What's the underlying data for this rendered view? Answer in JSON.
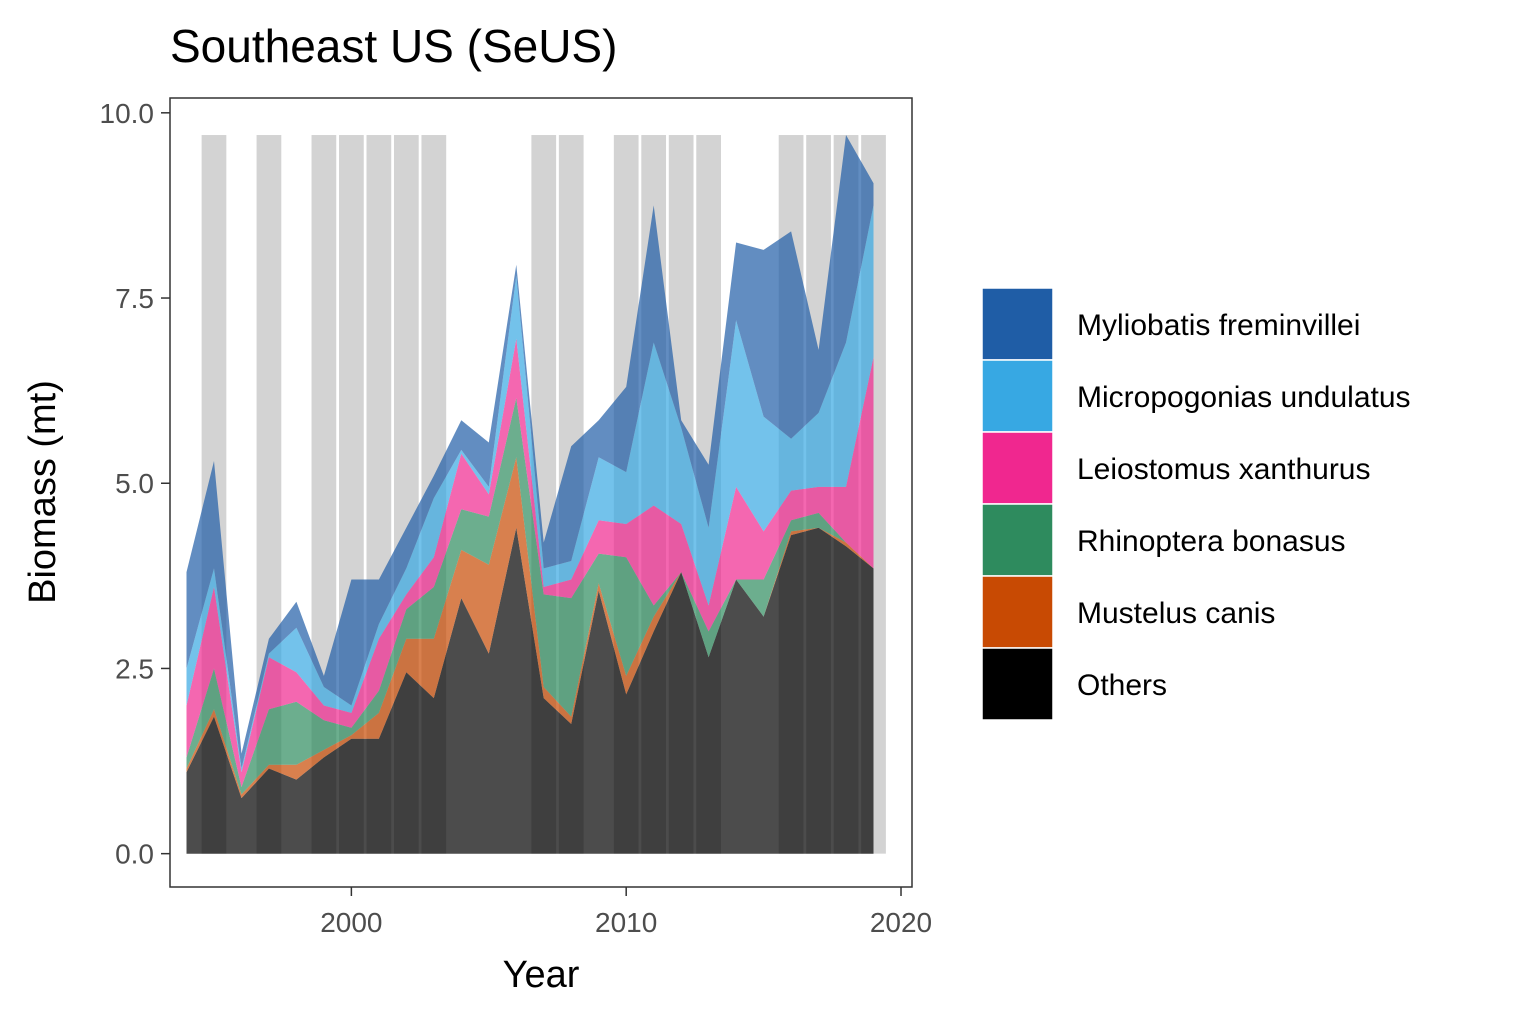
{
  "chart_data": {
    "type": "area",
    "stacked": true,
    "title": "Southeast US (SeUS)",
    "xlabel": "Year",
    "ylabel": "Biomass (mt)",
    "xlim": [
      1993.4,
      2020.4
    ],
    "ylim": [
      -0.45,
      10.2
    ],
    "x_ticks": [
      2000,
      2010,
      2020
    ],
    "y_ticks": [
      0.0,
      2.5,
      5.0,
      7.5,
      10.0
    ],
    "y_tick_labels": [
      "0.0",
      "2.5",
      "5.0",
      "7.5",
      "10.0"
    ],
    "grid": false,
    "legend_position": "right",
    "shaded_years": [
      1995,
      1997,
      1999,
      2000,
      2001,
      2002,
      2003,
      2007,
      2008,
      2010,
      2011,
      2012,
      2013,
      2016,
      2017,
      2018,
      2019
    ],
    "shade_band_top": 9.7,
    "shade_color": "#d3d3d3",
    "x": [
      1994,
      1995,
      1996,
      1997,
      1998,
      1999,
      2000,
      2001,
      2002,
      2003,
      2004,
      2005,
      2006,
      2007,
      2008,
      2009,
      2010,
      2011,
      2012,
      2013,
      2014,
      2015,
      2016,
      2017,
      2018,
      2019
    ],
    "series": [
      {
        "name": "Others",
        "color": "#000000",
        "values": [
          1.1,
          1.85,
          0.75,
          1.15,
          1.0,
          1.3,
          1.55,
          1.55,
          2.45,
          2.1,
          3.45,
          2.7,
          4.4,
          2.1,
          1.75,
          3.55,
          2.15,
          3.0,
          3.8,
          2.65,
          3.7,
          3.2,
          4.3,
          4.4,
          4.15,
          3.85
        ]
      },
      {
        "name": "Mustelus canis",
        "color": "#c84a03",
        "values": [
          0.05,
          0.1,
          0.05,
          0.05,
          0.2,
          0.1,
          0.05,
          0.35,
          0.45,
          0.8,
          0.65,
          1.2,
          0.95,
          0.15,
          0.1,
          0.1,
          0.25,
          0.2,
          0.0,
          0.0,
          0.0,
          0.0,
          0.05,
          0.0,
          0.05,
          0.0
        ]
      },
      {
        "name": "Rhinoptera bonasus",
        "color": "#2e8b5e",
        "values": [
          0.15,
          0.55,
          0.1,
          0.75,
          0.85,
          0.4,
          0.1,
          0.3,
          0.4,
          0.7,
          0.55,
          0.65,
          0.8,
          1.25,
          1.6,
          0.4,
          1.6,
          0.15,
          0.0,
          0.35,
          0.0,
          0.5,
          0.15,
          0.2,
          0.0,
          0.0
        ]
      },
      {
        "name": "Leiostomus xanthurus",
        "color": "#f0278f",
        "values": [
          0.7,
          1.1,
          0.2,
          0.7,
          0.4,
          0.2,
          0.2,
          0.7,
          0.2,
          0.4,
          0.75,
          0.3,
          0.8,
          0.1,
          0.25,
          0.45,
          0.45,
          1.35,
          0.65,
          0.35,
          1.25,
          0.65,
          0.4,
          0.35,
          0.75,
          2.85
        ]
      },
      {
        "name": "Micropogonias undulatus",
        "color": "#37a8e3",
        "values": [
          0.5,
          0.25,
          0.05,
          0.05,
          0.6,
          0.25,
          0.1,
          0.2,
          0.35,
          0.8,
          0.05,
          0.1,
          0.85,
          0.25,
          0.25,
          0.85,
          0.7,
          2.2,
          1.3,
          1.05,
          2.25,
          1.55,
          0.7,
          1.0,
          1.95,
          2.05
        ]
      },
      {
        "name": "Myliobatis freminvillei",
        "color": "#1f5da6",
        "values": [
          1.3,
          1.45,
          0.2,
          0.2,
          0.35,
          0.15,
          1.7,
          0.6,
          0.55,
          0.3,
          0.4,
          0.6,
          0.15,
          0.35,
          1.55,
          0.5,
          1.15,
          1.85,
          0.1,
          0.85,
          1.05,
          2.25,
          2.8,
          0.85,
          2.8,
          0.3
        ]
      }
    ]
  }
}
